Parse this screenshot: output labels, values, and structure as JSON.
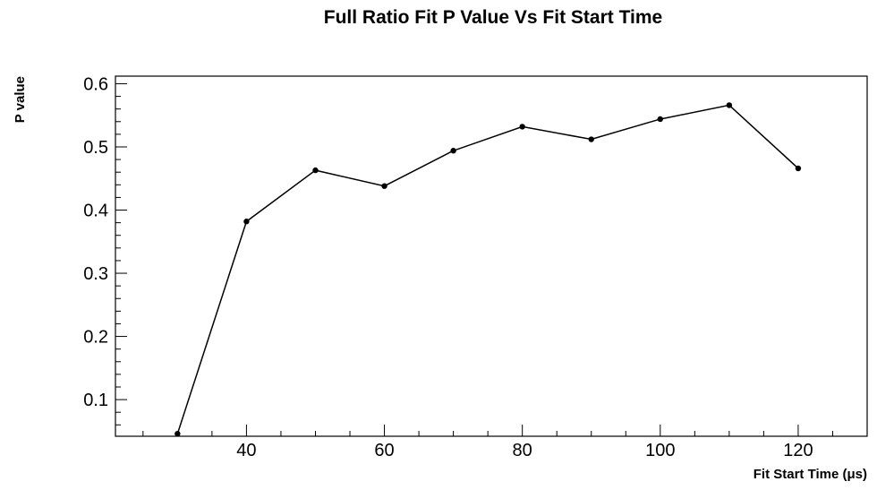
{
  "chart_data": {
    "type": "line",
    "title": "Full Ratio Fit P Value Vs Fit Start Time",
    "xlabel": "Fit Start Time (μs)",
    "ylabel": "P value",
    "xlim": [
      21,
      130
    ],
    "ylim": [
      0.042,
      0.612
    ],
    "x_ticks": [
      40,
      60,
      80,
      100,
      120
    ],
    "y_ticks": [
      0.1,
      0.2,
      0.3,
      0.4,
      0.5,
      0.6
    ],
    "x_tick_labels": [
      "40",
      "60",
      "80",
      "100",
      "120"
    ],
    "y_tick_labels": [
      "0.1",
      "0.2",
      "0.3",
      "0.4",
      "0.5",
      "0.6"
    ],
    "x_minor_step": 5,
    "y_minor_step": 0.02,
    "grid": false,
    "series": [
      {
        "color": "#000000",
        "x": [
          30,
          40,
          50,
          60,
          70,
          80,
          90,
          100,
          110,
          120
        ],
        "y": [
          0.046,
          0.382,
          0.463,
          0.438,
          0.494,
          0.532,
          0.512,
          0.544,
          0.566,
          0.466
        ]
      }
    ]
  }
}
